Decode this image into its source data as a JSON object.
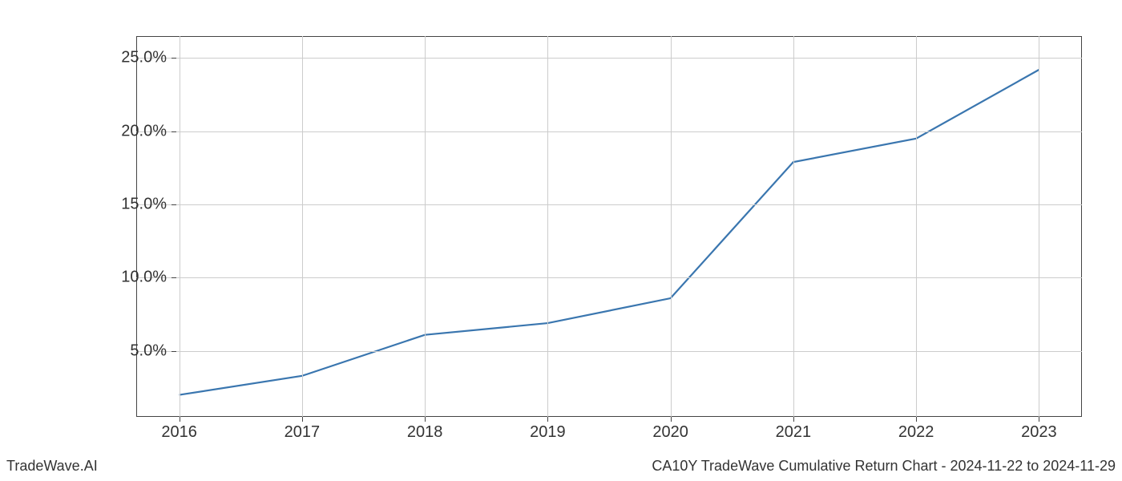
{
  "chart": {
    "type": "line",
    "x_labels": [
      "2016",
      "2017",
      "2018",
      "2019",
      "2020",
      "2021",
      "2022",
      "2023"
    ],
    "y_values": [
      2.0,
      3.3,
      6.1,
      6.9,
      8.6,
      17.9,
      19.5,
      24.2
    ],
    "line_color": "#3a76af",
    "line_width": 2.2,
    "background_color": "#ffffff",
    "grid_color": "#cccccc",
    "border_color": "#444444",
    "y_ticks": [
      5.0,
      10.0,
      15.0,
      20.0,
      25.0
    ],
    "y_tick_labels": [
      "5.0%",
      "10.0%",
      "15.0%",
      "20.0%",
      "25.0%"
    ],
    "ylim": [
      0.5,
      26.5
    ],
    "xlim": [
      -0.35,
      7.35
    ],
    "tick_fontsize": 20,
    "footer_fontsize": 18
  },
  "footer": {
    "left": "TradeWave.AI",
    "right": "CA10Y TradeWave Cumulative Return Chart - 2024-11-22 to 2024-11-29"
  }
}
